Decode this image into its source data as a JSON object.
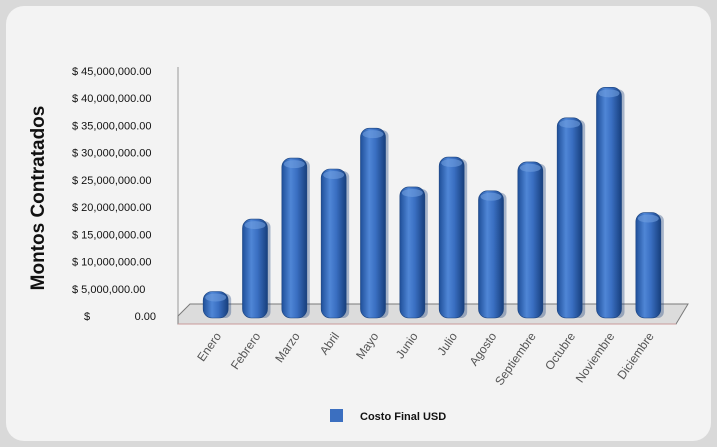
{
  "chart_data": {
    "type": "bar",
    "ylabel": "Montos Contratados",
    "categories": [
      "Enero",
      "Febrero",
      "Marzo",
      "Abril",
      "Mayo",
      "Junio",
      "Julio",
      "Agosto",
      "Septiembre",
      "Octubre",
      "Noviembre",
      "Diciembre"
    ],
    "series": [
      {
        "name": "Costo Final USD",
        "color": "#3b6fc0",
        "values": [
          4500000,
          17800000,
          29000000,
          27000000,
          34500000,
          23700000,
          29200000,
          23000000,
          28300000,
          36400000,
          42000000,
          19000000
        ]
      }
    ],
    "ylim": [
      0,
      45000000
    ],
    "ytick_values": [
      0,
      5000000,
      10000000,
      15000000,
      20000000,
      25000000,
      30000000,
      35000000,
      40000000,
      45000000
    ],
    "ytick_labels": [
      "$ 0.00",
      "$ 5,000,000.00",
      "$ 10,000,000.00",
      "$ 15,000,000.00",
      "$ 20,000,000.00",
      "$ 25,000,000.00",
      "$ 30,000,000.00",
      "$ 35,000,000.00",
      "$ 40,000,000.00",
      "$ 45,000,000.00"
    ],
    "legend_position": "bottom",
    "grid": false
  }
}
